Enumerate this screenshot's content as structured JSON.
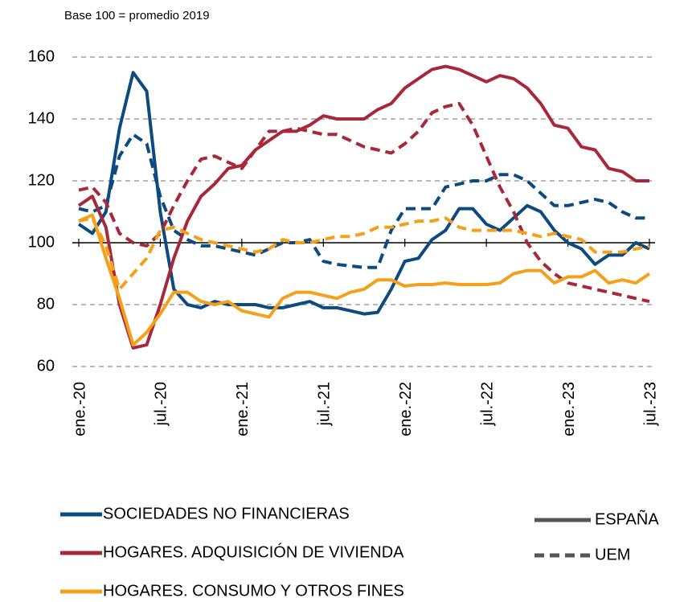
{
  "chart_data": {
    "type": "line",
    "subtitle": "Base 100 = promedio 2019",
    "categories": [
      "ene.-20",
      null,
      null,
      null,
      null,
      null,
      "jul.-20",
      null,
      null,
      null,
      null,
      null,
      "ene.-21",
      null,
      null,
      null,
      null,
      null,
      "jul.-21",
      null,
      null,
      null,
      null,
      null,
      "ene.-22",
      null,
      null,
      null,
      null,
      null,
      "jul.-22",
      null,
      null,
      null,
      null,
      null,
      "ene.-23",
      null,
      null,
      null,
      null,
      null,
      "jul.-23"
    ],
    "ylim": [
      60,
      160
    ],
    "yticks": [
      60,
      80,
      100,
      120,
      140,
      160
    ],
    "grid": true,
    "baseline": 100,
    "styles": [
      {
        "name": "ESPAÑA",
        "dash": "solid"
      },
      {
        "name": "UEM",
        "dash": "dashed"
      }
    ],
    "series": [
      {
        "name": "SOCIEDADES NO FINANCIERAS",
        "color": "#0d4a80",
        "values": [
          [
            106,
            103,
            110,
            137,
            155,
            149,
            110,
            85,
            80,
            79,
            81,
            80,
            80,
            80,
            79,
            79,
            80,
            81,
            79,
            79,
            78,
            77,
            77.5,
            85,
            94,
            95,
            101,
            104,
            111,
            111,
            106,
            104,
            108,
            112,
            110,
            104,
            100,
            98,
            93,
            96,
            96,
            100,
            98
          ],
          [
            111,
            110,
            112,
            128,
            135,
            132,
            115,
            104,
            101,
            99,
            99,
            98,
            97,
            96,
            98,
            100,
            100,
            101,
            94,
            93,
            92.5,
            92,
            92,
            104,
            111,
            111,
            111,
            118,
            119,
            120,
            120,
            122,
            122,
            120,
            116,
            112,
            112,
            113,
            114,
            113,
            110,
            108,
            108
          ]
        ]
      },
      {
        "name": "HOGARES. ADQUISICIÓN DE VIVIENDA",
        "color": "#a8283a",
        "values": [
          [
            112,
            115,
            105,
            80,
            66,
            67,
            80,
            95,
            107,
            115,
            119,
            124,
            125,
            130,
            133,
            136,
            136,
            138,
            141,
            140,
            140,
            140,
            143,
            145,
            150,
            153,
            156,
            157,
            156,
            154,
            152,
            154,
            153,
            150,
            145,
            138,
            137,
            131,
            130,
            124,
            123,
            120,
            120
          ],
          [
            117,
            118,
            113,
            103,
            100,
            99,
            103,
            112,
            120,
            127,
            128,
            126,
            124,
            130,
            136,
            136,
            137,
            136,
            135,
            135,
            133,
            131,
            130,
            129,
            132,
            136,
            142,
            144,
            145,
            138,
            128,
            118,
            110,
            100,
            94,
            90,
            87,
            86,
            85,
            84,
            83,
            82,
            81
          ]
        ]
      },
      {
        "name": "HOGARES. CONSUMO Y OTROS FINES",
        "color": "#f5a01a",
        "values": [
          [
            107,
            109,
            95,
            82,
            67,
            71,
            77,
            84,
            84,
            81,
            80,
            81,
            78,
            77,
            76,
            82,
            84,
            84,
            83,
            82,
            84,
            85,
            88,
            88,
            86,
            86.5,
            86.5,
            87,
            86.5,
            86.5,
            86.5,
            87,
            90,
            91,
            91,
            87,
            89,
            89,
            91,
            87,
            88,
            87,
            90
          ],
          [
            107,
            108,
            99,
            85,
            90,
            95,
            104,
            105,
            103,
            101,
            100,
            99,
            98,
            97,
            98,
            101,
            100,
            100,
            101,
            102,
            102,
            103,
            105,
            105,
            106,
            107,
            107,
            108,
            105,
            104,
            104,
            104,
            104,
            103,
            102,
            103,
            102,
            101,
            97,
            97,
            97,
            98,
            99
          ]
        ]
      }
    ]
  }
}
